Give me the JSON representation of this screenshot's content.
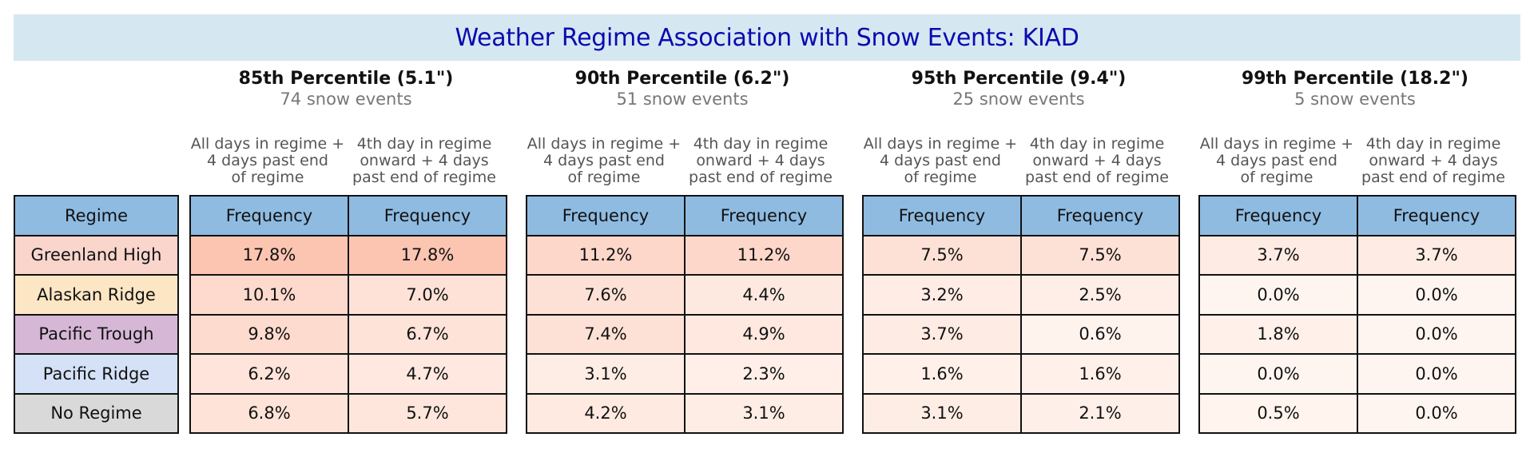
{
  "chart_data": {
    "type": "table",
    "title": "Weather Regime Association with Snow Events: KIAD",
    "regime_header": "Regime",
    "regimes": [
      {
        "name": "Greenland High",
        "color": "#f9d5cc"
      },
      {
        "name": "Alaskan Ridge",
        "color": "#fde6c4"
      },
      {
        "name": "Pacific Trough",
        "color": "#d6b7d6"
      },
      {
        "name": "Pacific Ridge",
        "color": "#d4e1f6"
      },
      {
        "name": "No Regime",
        "color": "#d9d9d9"
      }
    ],
    "column_labels": [
      "All days in regime +\n4 days past end\nof regime",
      "4th day in regime\nonward + 4 days\npast end of regime"
    ],
    "value_header": "Frequency",
    "groups": [
      {
        "percentile": "85th Percentile (5.1\")",
        "events": "74 snow events",
        "columns": [
          [
            "17.8%",
            "10.1%",
            "9.8%",
            "6.2%",
            "6.8%"
          ],
          [
            "17.8%",
            "7.0%",
            "6.7%",
            "4.7%",
            "5.7%"
          ]
        ]
      },
      {
        "percentile": "90th Percentile (6.2\")",
        "events": "51 snow events",
        "columns": [
          [
            "11.2%",
            "7.6%",
            "7.4%",
            "3.1%",
            "4.2%"
          ],
          [
            "11.2%",
            "4.4%",
            "4.9%",
            "2.3%",
            "3.1%"
          ]
        ]
      },
      {
        "percentile": "95th Percentile (9.4\")",
        "events": "25 snow events",
        "columns": [
          [
            "7.5%",
            "3.2%",
            "3.7%",
            "1.6%",
            "3.1%"
          ],
          [
            "7.5%",
            "2.5%",
            "0.6%",
            "1.6%",
            "2.1%"
          ]
        ]
      },
      {
        "percentile": "99th Percentile (18.2\")",
        "events": "5 snow events",
        "columns": [
          [
            "3.7%",
            "0.0%",
            "1.8%",
            "0.0%",
            "0.5%"
          ],
          [
            "3.7%",
            "0.0%",
            "0.0%",
            "0.0%",
            "0.0%"
          ]
        ]
      }
    ],
    "colors": {
      "title_text": "#0a0ab0",
      "title_band": "#d5e8f1",
      "header_fill": "#8fbbe1",
      "heat_low": "#fff5f0",
      "heat_high": "#fcc5b2"
    }
  }
}
